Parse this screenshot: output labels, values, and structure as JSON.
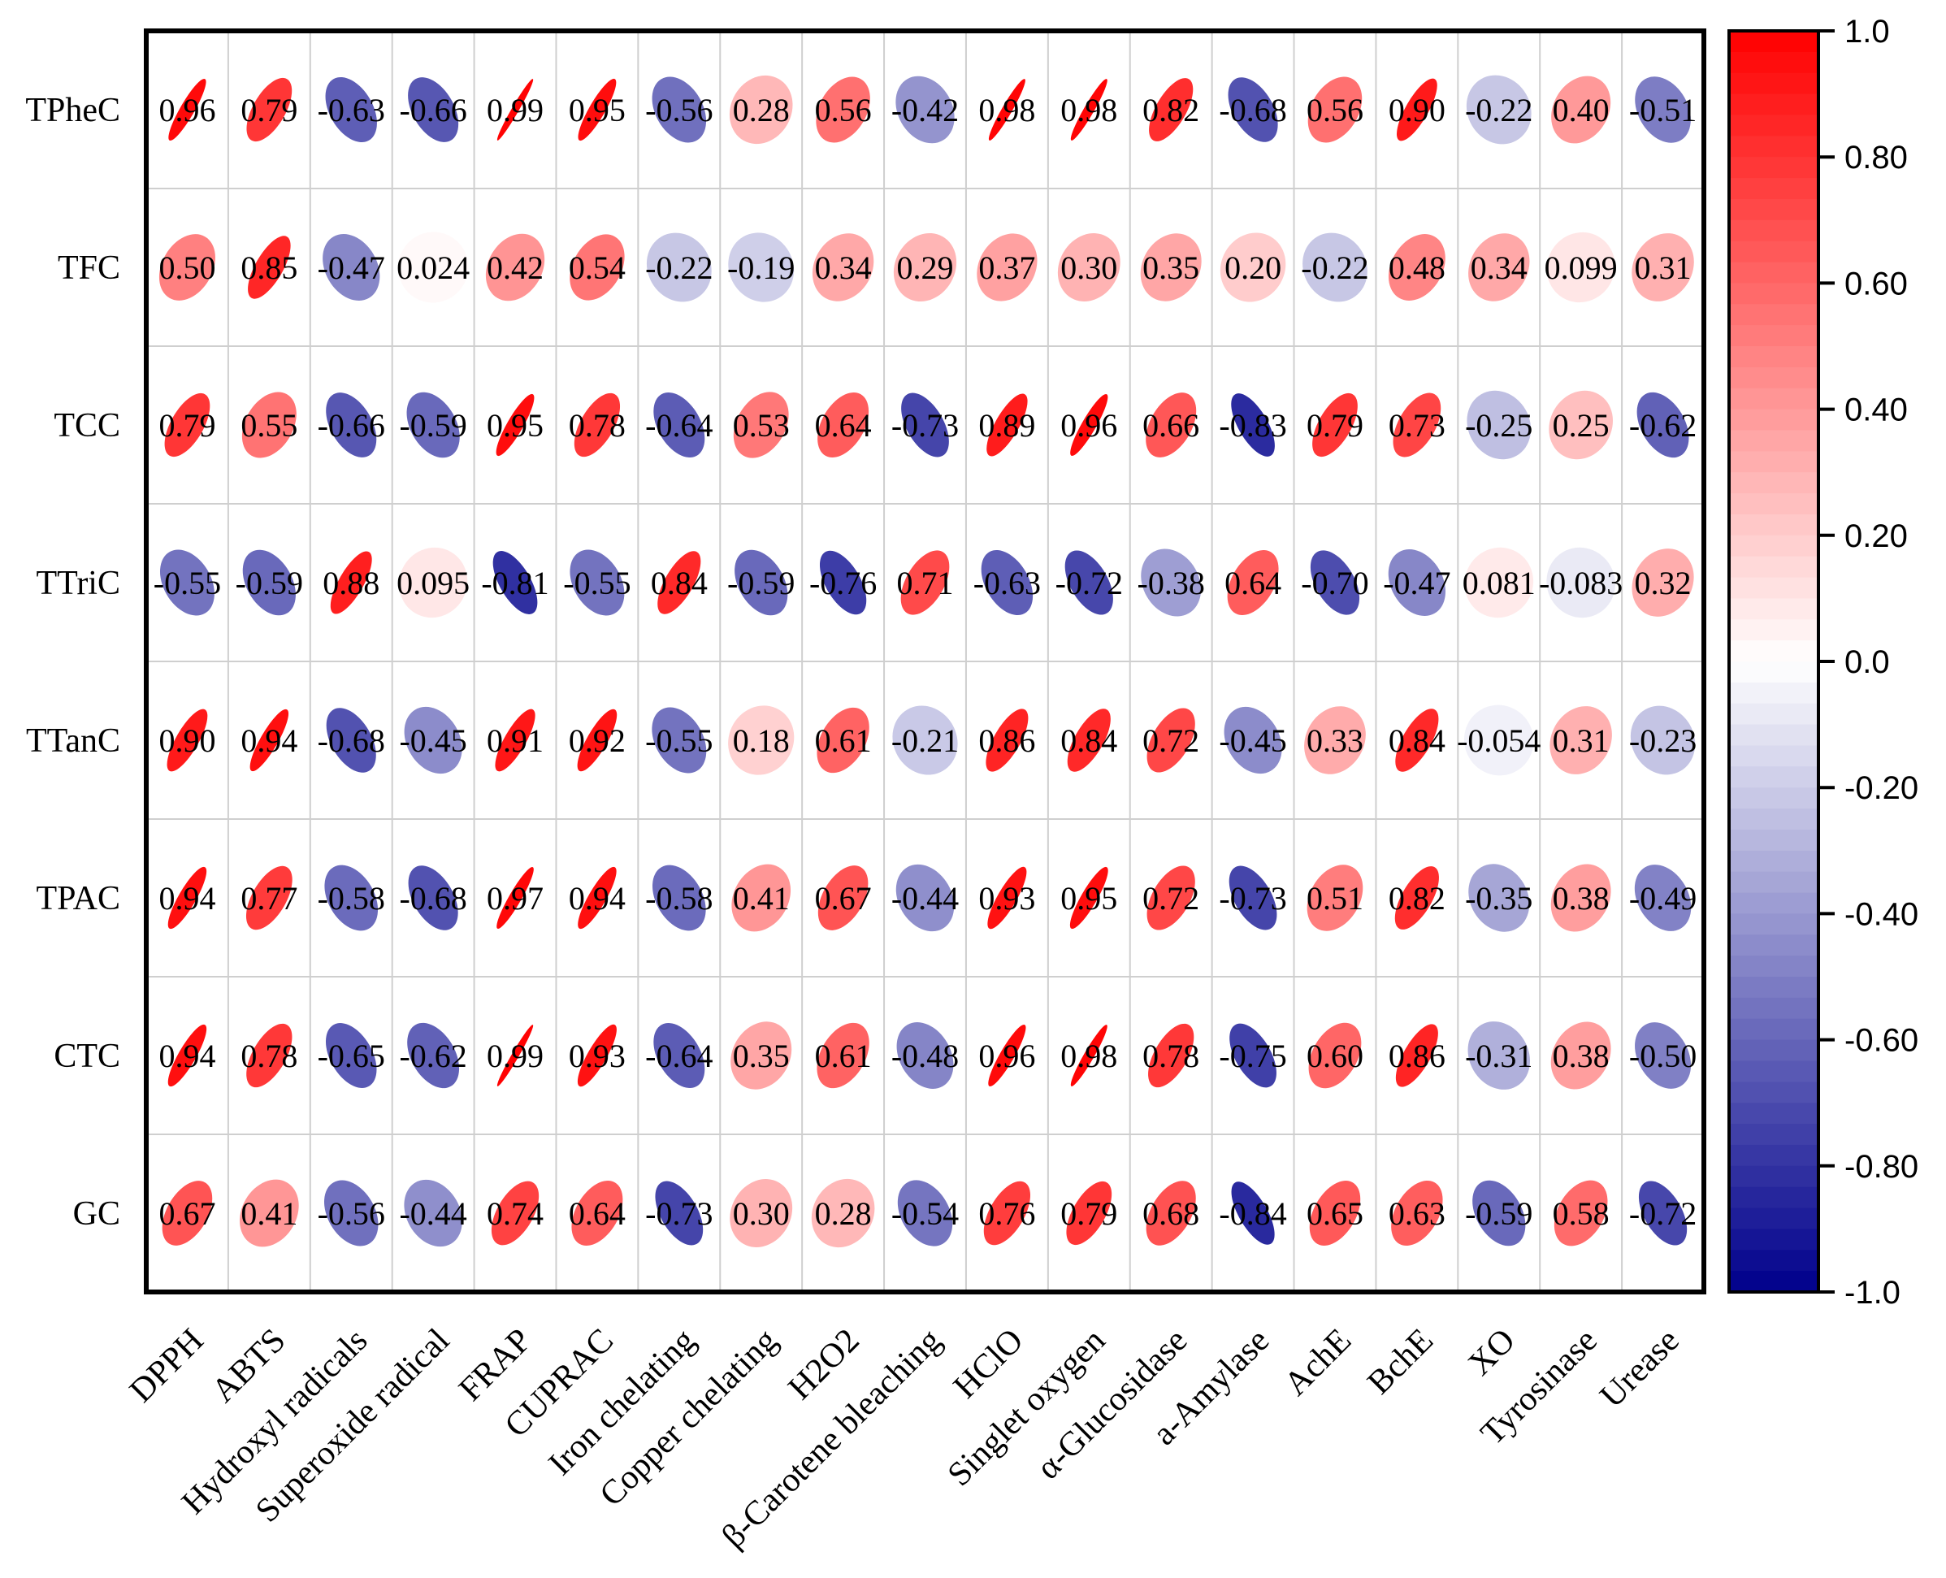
{
  "chart_data": {
    "type": "heatmap",
    "subtype": "correlation-ellipse",
    "rows": [
      "TPheC",
      "TFC",
      "TCC",
      "TTriC",
      "TTanC",
      "TPAC",
      "CTC",
      "GC"
    ],
    "columns": [
      "DPPH",
      "ABTS",
      "Hydroxyl radicals",
      "Superoxide radical",
      "FRAP",
      "CUPRAC",
      "Iron chelating",
      "Copper chelating",
      "H2O2",
      "β-Carotene bleaching",
      "HClO",
      "Singlet oxygen",
      "α-Glucosidase",
      "a-Amylase",
      "AchE",
      "BchE",
      "XO",
      "Tyrosinase",
      "Urease"
    ],
    "values": [
      [
        0.96,
        0.79,
        -0.63,
        -0.66,
        0.99,
        0.95,
        -0.56,
        0.28,
        0.56,
        -0.42,
        0.98,
        0.98,
        0.82,
        -0.68,
        0.56,
        0.9,
        -0.22,
        0.4,
        -0.51
      ],
      [
        0.5,
        0.85,
        -0.47,
        0.024,
        0.42,
        0.54,
        -0.22,
        -0.19,
        0.34,
        0.29,
        0.37,
        0.3,
        0.35,
        0.2,
        -0.22,
        0.48,
        0.34,
        0.099,
        0.31
      ],
      [
        0.79,
        0.55,
        -0.66,
        -0.59,
        0.95,
        0.78,
        -0.64,
        0.53,
        0.64,
        -0.73,
        0.89,
        0.96,
        0.66,
        -0.83,
        0.79,
        0.73,
        -0.25,
        0.25,
        -0.62
      ],
      [
        -0.55,
        -0.59,
        0.88,
        0.095,
        -0.81,
        -0.55,
        0.84,
        -0.59,
        -0.76,
        0.71,
        -0.63,
        -0.72,
        -0.38,
        0.64,
        -0.7,
        -0.47,
        0.081,
        -0.083,
        0.32
      ],
      [
        0.9,
        0.94,
        -0.68,
        -0.45,
        0.91,
        0.92,
        -0.55,
        0.18,
        0.61,
        -0.21,
        0.86,
        0.84,
        0.72,
        -0.45,
        0.33,
        0.84,
        -0.054,
        0.31,
        -0.23
      ],
      [
        0.94,
        0.77,
        -0.58,
        -0.68,
        0.97,
        0.94,
        -0.58,
        0.41,
        0.67,
        -0.44,
        0.93,
        0.95,
        0.72,
        -0.73,
        0.51,
        0.82,
        -0.35,
        0.38,
        -0.49
      ],
      [
        0.94,
        0.78,
        -0.65,
        -0.62,
        0.99,
        0.93,
        -0.64,
        0.35,
        0.61,
        -0.48,
        0.96,
        0.98,
        0.78,
        -0.75,
        0.6,
        0.86,
        -0.31,
        0.38,
        -0.5
      ],
      [
        0.67,
        0.41,
        -0.56,
        -0.44,
        0.74,
        0.64,
        -0.73,
        0.3,
        0.28,
        -0.54,
        0.76,
        0.79,
        0.68,
        -0.84,
        0.65,
        0.63,
        -0.59,
        0.58,
        -0.72
      ]
    ],
    "value_labels": [
      [
        "0.96",
        "0.79",
        "-0.63",
        "-0.66",
        "0.99",
        "0.95",
        "-0.56",
        "0.28",
        "0.56",
        "-0.42",
        "0.98",
        "0.98",
        "0.82",
        "-0.68",
        "0.56",
        "0.90",
        "-0.22",
        "0.40",
        "-0.51"
      ],
      [
        "0.50",
        "0.85",
        "-0.47",
        "0.024",
        "0.42",
        "0.54",
        "-0.22",
        "-0.19",
        "0.34",
        "0.29",
        "0.37",
        "0.30",
        "0.35",
        "0.20",
        "-0.22",
        "0.48",
        "0.34",
        "0.099",
        "0.31"
      ],
      [
        "0.79",
        "0.55",
        "-0.66",
        "-0.59",
        "0.95",
        "0.78",
        "-0.64",
        "0.53",
        "0.64",
        "-0.73",
        "0.89",
        "0.96",
        "0.66",
        "-0.83",
        "0.79",
        "0.73",
        "-0.25",
        "0.25",
        "-0.62"
      ],
      [
        "-0.55",
        "-0.59",
        "0.88",
        "0.095",
        "-0.81",
        "-0.55",
        "0.84",
        "-0.59",
        "-0.76",
        "0.71",
        "-0.63",
        "-0.72",
        "-0.38",
        "0.64",
        "-0.70",
        "-0.47",
        "0.081",
        "-0.083",
        "0.32"
      ],
      [
        "0.90",
        "0.94",
        "-0.68",
        "-0.45",
        "0.91",
        "0.92",
        "-0.55",
        "0.18",
        "0.61",
        "-0.21",
        "0.86",
        "0.84",
        "0.72",
        "-0.45",
        "0.33",
        "0.84",
        "-0.054",
        "0.31",
        "-0.23"
      ],
      [
        "0.94",
        "0.77",
        "-0.58",
        "-0.68",
        "0.97",
        "0.94",
        "-0.58",
        "0.41",
        "0.67",
        "-0.44",
        "0.93",
        "0.95",
        "0.72",
        "-0.73",
        "0.51",
        "0.82",
        "-0.35",
        "0.38",
        "-0.49"
      ],
      [
        "0.94",
        "0.78",
        "-0.65",
        "-0.62",
        "0.99",
        "0.93",
        "-0.64",
        "0.35",
        "0.61",
        "-0.48",
        "0.96",
        "0.98",
        "0.78",
        "-0.75",
        "0.60",
        "0.86",
        "-0.31",
        "0.38",
        "-0.50"
      ],
      [
        "0.67",
        "0.41",
        "-0.56",
        "-0.44",
        "0.74",
        "0.64",
        "-0.73",
        "0.30",
        "0.28",
        "-0.54",
        "0.76",
        "0.79",
        "0.68",
        "-0.84",
        "0.65",
        "0.63",
        "-0.59",
        "0.58",
        "-0.72"
      ]
    ],
    "colorbar": {
      "range": [
        -1.0,
        1.0
      ],
      "ticks": [
        1.0,
        0.8,
        0.6,
        0.4,
        0.2,
        0.0,
        -0.2,
        -0.4,
        -0.6,
        -0.8,
        -1.0
      ],
      "tick_labels": [
        "1.0",
        "0.80",
        "0.60",
        "0.40",
        "0.20",
        "0.0",
        "-0.20",
        "-0.40",
        "-0.60",
        "-0.80",
        "-1.0"
      ],
      "color_positive": "#ff0000",
      "color_zero": "#ffffff",
      "color_negative": "#00008b",
      "placement": "right"
    },
    "title": "",
    "xlabel": "",
    "ylabel": ""
  }
}
